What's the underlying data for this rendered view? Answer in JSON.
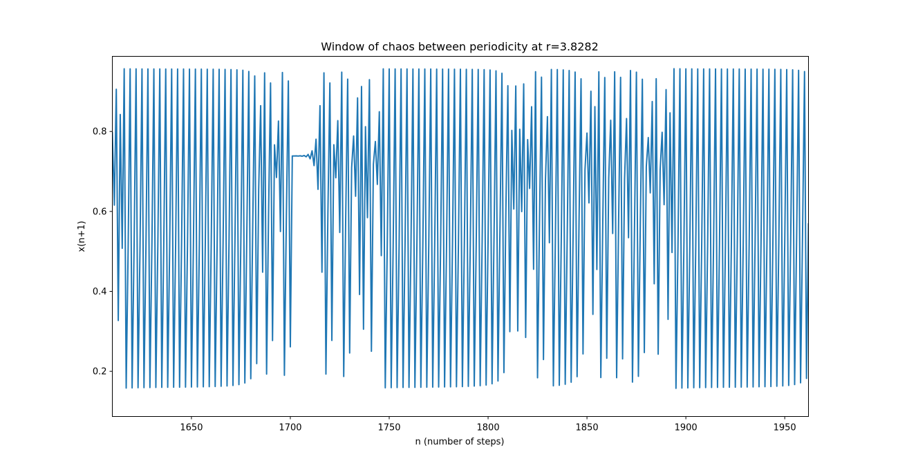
{
  "chart_data": {
    "type": "line",
    "title": "Window of chaos between periodicity at r=3.8282",
    "xlabel": "n (number of steps)",
    "ylabel": "x(n+1)",
    "xlim": [
      1610,
      1962
    ],
    "ylim": [
      0.087,
      0.988
    ],
    "xticks": [
      1650,
      1700,
      1750,
      1800,
      1850,
      1900,
      1950
    ],
    "yticks": [
      0.2,
      0.4,
      0.6,
      0.8
    ],
    "xtick_labels": [
      "1650",
      "1700",
      "1750",
      "1800",
      "1850",
      "1900",
      "1950"
    ],
    "ytick_labels": [
      "0.2",
      "0.4",
      "0.6",
      "0.8"
    ],
    "grid": false,
    "legend": "none",
    "series": [
      {
        "name": "x(n+1)",
        "color": "#1f77b4",
        "r": 3.8282,
        "x_start": 1610,
        "x_end": 1962,
        "description": "logistic-map iterates x(n+1) = r*x(n)*(1-x(n)); near-period-3 laminar phases (~0.16 / 0.51 / 0.955) interrupted by chaotic bursts"
      }
    ]
  }
}
